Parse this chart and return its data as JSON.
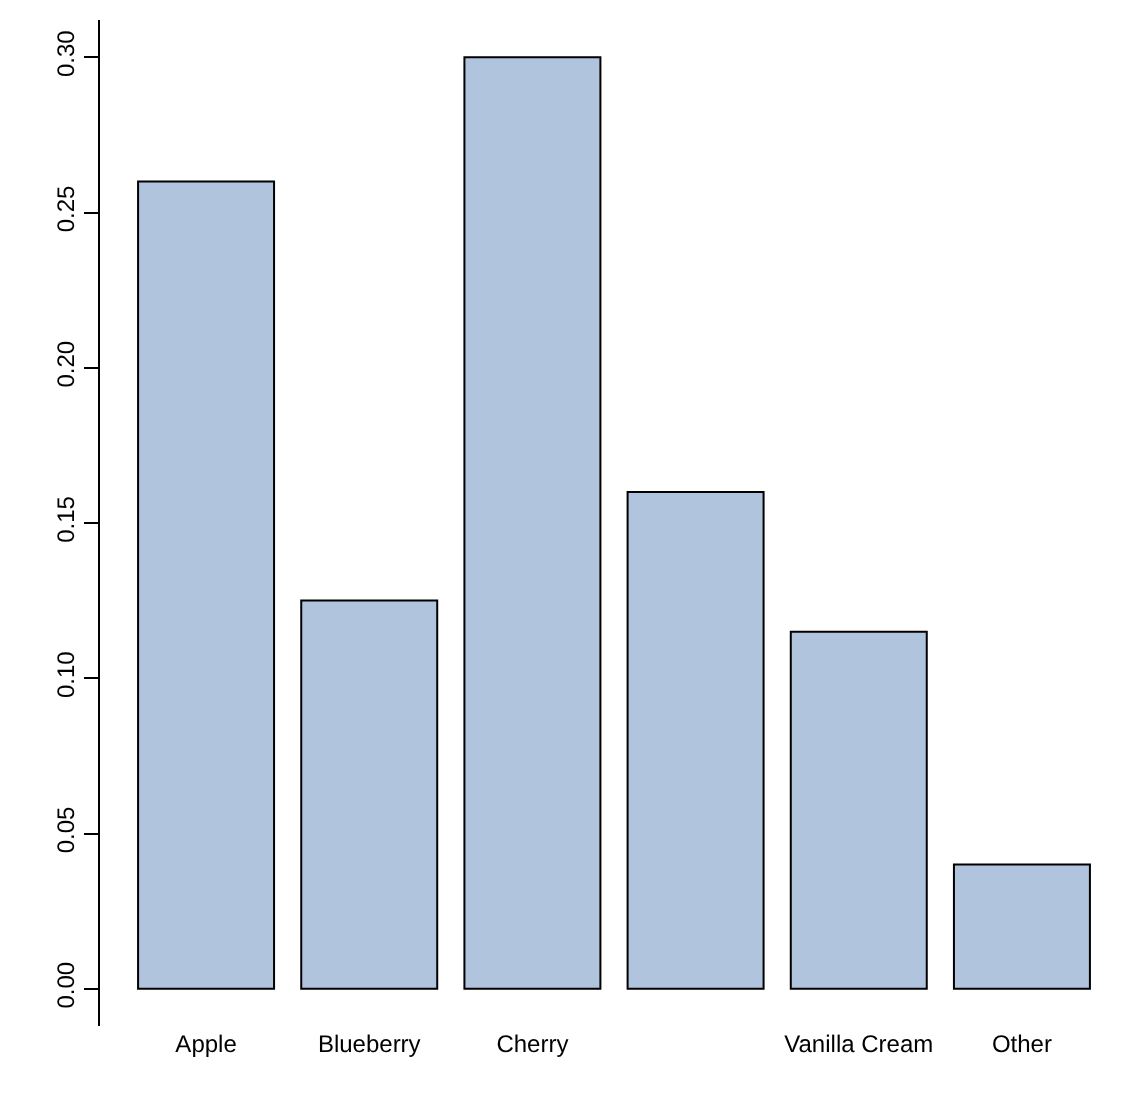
{
  "chart_data": {
    "type": "bar",
    "categories": [
      "Apple",
      "Blueberry",
      "Cherry",
      null,
      "Vanilla Cream",
      "Other"
    ],
    "values": [
      0.26,
      0.125,
      0.3,
      0.16,
      0.115,
      0.04
    ],
    "color": "#b0c4de",
    "ylim": [
      -0.012,
      0.312
    ],
    "yticks": [
      {
        "value": 0,
        "label": "0.00"
      },
      {
        "value": 0.05,
        "label": "0.05"
      },
      {
        "value": 0.1,
        "label": "0.10"
      },
      {
        "value": 0.15,
        "label": "0.15"
      },
      {
        "value": 0.2,
        "label": "0.20"
      },
      {
        "value": 0.25,
        "label": "0.25"
      },
      {
        "value": 0.3,
        "label": "0.30"
      }
    ],
    "legend": false
  }
}
